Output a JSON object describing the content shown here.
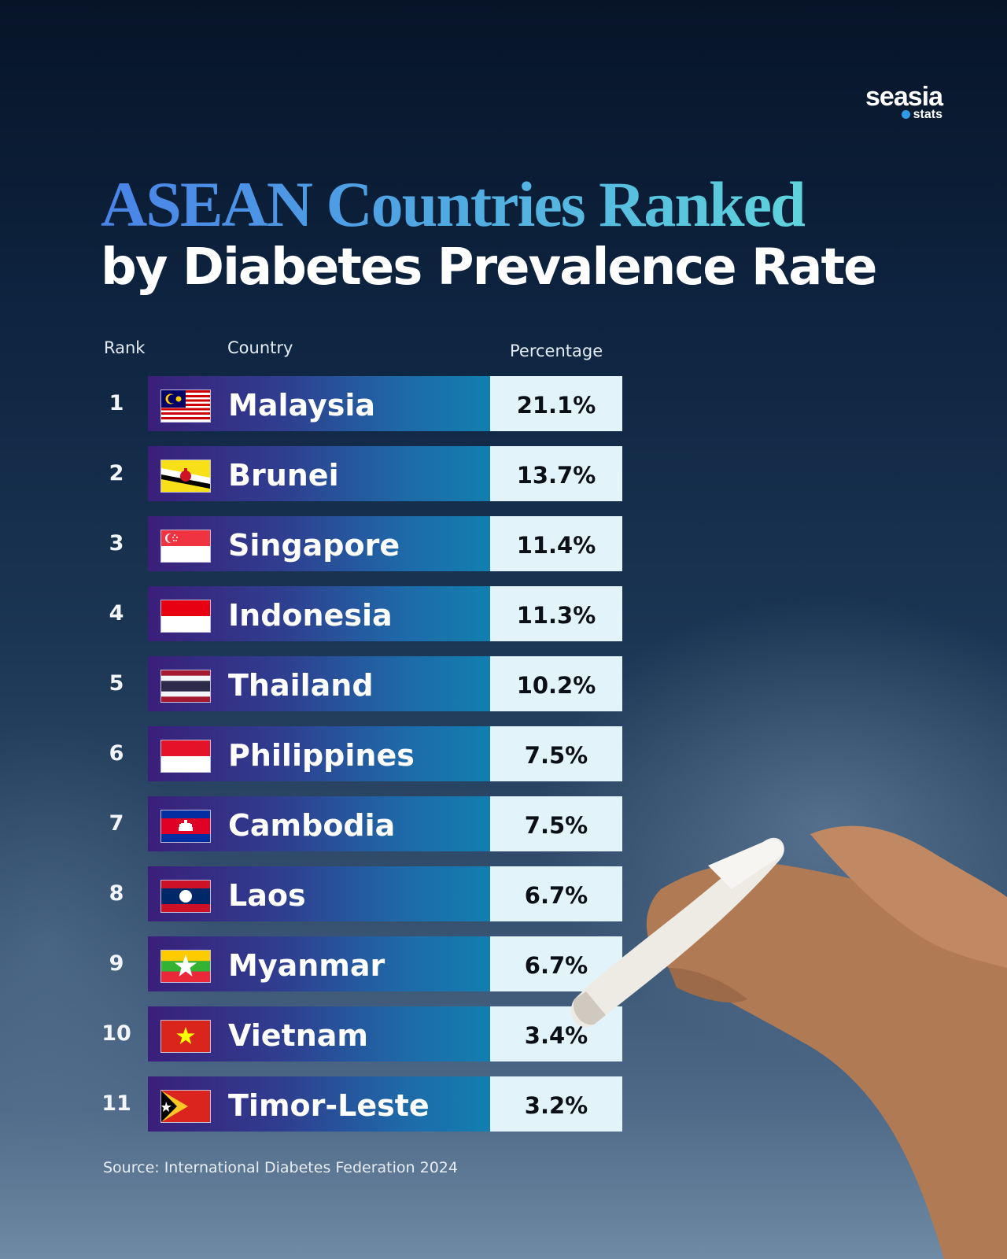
{
  "brand": {
    "word": "seasia",
    "sub": "stats"
  },
  "title_line1": "ASEAN Countries Ranked",
  "title_line2": "by Diabetes Prevalence Rate",
  "headers": {
    "rank": "Rank",
    "country": "Country",
    "percentage": "Percentage"
  },
  "source": "Source: International Diabetes Federation 2024",
  "chart_data": {
    "type": "table",
    "columns": [
      "Rank",
      "Country",
      "Percentage"
    ],
    "rows": [
      {
        "rank": "1",
        "country": "Malaysia",
        "percentage": "21.1%",
        "value": 21.1,
        "flag": "malaysia-flag-icon"
      },
      {
        "rank": "2",
        "country": "Brunei",
        "percentage": "13.7%",
        "value": 13.7,
        "flag": "brunei-flag-icon"
      },
      {
        "rank": "3",
        "country": "Singapore",
        "percentage": "11.4%",
        "value": 11.4,
        "flag": "singapore-flag-icon"
      },
      {
        "rank": "4",
        "country": "Indonesia",
        "percentage": "11.3%",
        "value": 11.3,
        "flag": "indonesia-flag-icon"
      },
      {
        "rank": "5",
        "country": "Thailand",
        "percentage": "10.2%",
        "value": 10.2,
        "flag": "thailand-flag-icon"
      },
      {
        "rank": "6",
        "country": "Philippines",
        "percentage": "7.5%",
        "value": 7.5,
        "flag": "philippines-flag-icon"
      },
      {
        "rank": "7",
        "country": "Cambodia",
        "percentage": "7.5%",
        "value": 7.5,
        "flag": "cambodia-flag-icon"
      },
      {
        "rank": "8",
        "country": "Laos",
        "percentage": "6.7%",
        "value": 6.7,
        "flag": "laos-flag-icon"
      },
      {
        "rank": "9",
        "country": "Myanmar",
        "percentage": "6.7%",
        "value": 6.7,
        "flag": "myanmar-flag-icon"
      },
      {
        "rank": "10",
        "country": "Vietnam",
        "percentage": "3.4%",
        "value": 3.4,
        "flag": "vietnam-flag-icon"
      },
      {
        "rank": "11",
        "country": "Timor-Leste",
        "percentage": "3.2%",
        "value": 3.2,
        "flag": "timor-leste-flag-icon"
      }
    ]
  }
}
